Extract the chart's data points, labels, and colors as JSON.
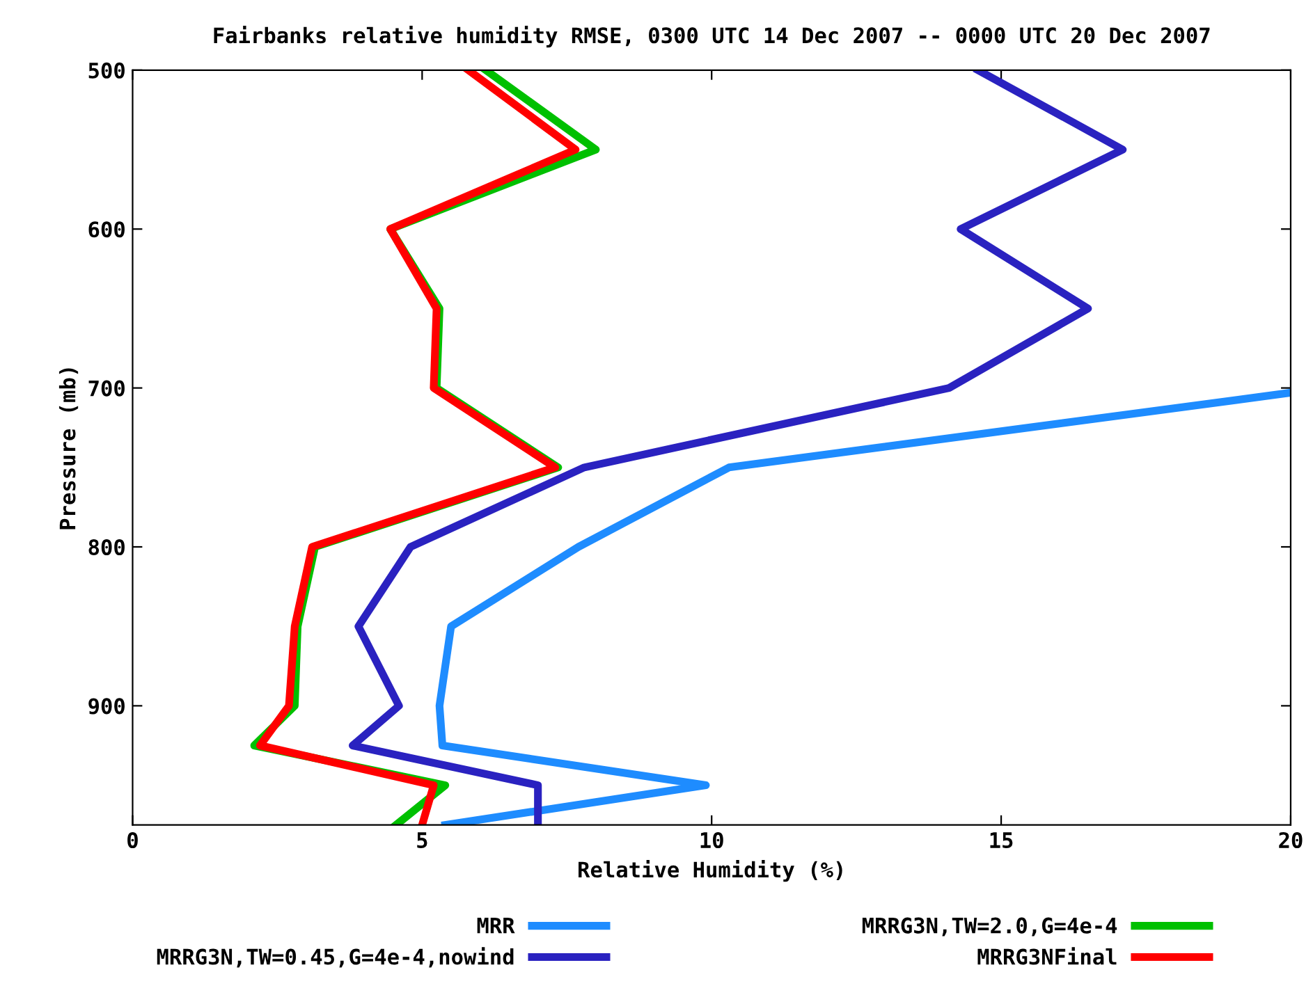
{
  "chart_data": {
    "type": "line",
    "title": "Fairbanks relative humidity RMSE, 0300 UTC 14 Dec 2007 -- 0000 UTC 20 Dec 2007",
    "xlabel": "Relative Humidity (%)",
    "ylabel": "Pressure (mb)",
    "xlim": [
      0,
      20
    ],
    "xticks": [
      0,
      5,
      10,
      15,
      20
    ],
    "ylim": [
      975,
      500
    ],
    "yticks": [
      500,
      600,
      700,
      800,
      900
    ],
    "grid": false,
    "legend": "bottom",
    "marker": "none",
    "line_style": "solid",
    "series": [
      {
        "name": "MRR",
        "color": "#1e8cff",
        "x": [
          20,
          10.3,
          7.7,
          5.5,
          5.3,
          5.35,
          9.9,
          5.4
        ],
        "values": [
          703,
          750,
          800,
          850,
          900,
          925,
          950,
          975
        ]
      },
      {
        "name": "MRRG3N,TW=0.45,G=4e-4,nowind",
        "color": "#2a22c0",
        "x": [
          14.6,
          17.1,
          14.3,
          16.5,
          14.1,
          7.8,
          4.8,
          3.9,
          4.6,
          3.8,
          7.0,
          7.0
        ],
        "values": [
          500,
          550,
          600,
          650,
          700,
          750,
          800,
          850,
          900,
          925,
          950,
          975
        ]
      },
      {
        "name": "MRRG3N,TW=2.0,G=4e-4",
        "color": "#00c000",
        "x": [
          6.1,
          8.0,
          4.45,
          5.3,
          5.25,
          7.35,
          3.15,
          2.85,
          2.8,
          2.1,
          5.4,
          4.55
        ],
        "values": [
          500,
          550,
          600,
          650,
          700,
          750,
          800,
          850,
          900,
          925,
          950,
          975
        ]
      },
      {
        "name": "MRRG3NFinal",
        "color": "#ff0000",
        "x": [
          5.8,
          7.65,
          4.45,
          5.25,
          5.2,
          7.3,
          3.1,
          2.8,
          2.7,
          2.2,
          5.2,
          5.0
        ],
        "values": [
          500,
          550,
          600,
          650,
          700,
          750,
          800,
          850,
          900,
          925,
          950,
          975
        ]
      }
    ]
  }
}
